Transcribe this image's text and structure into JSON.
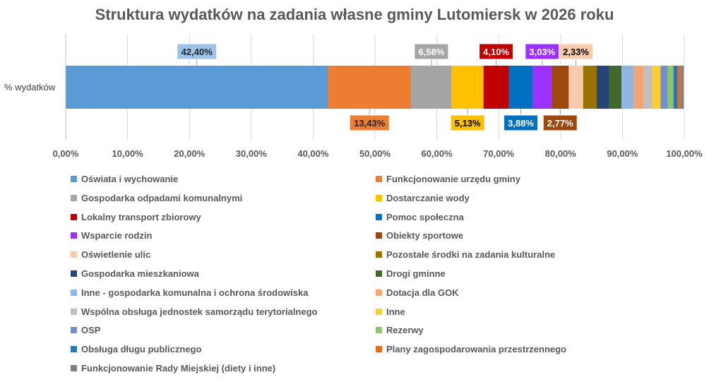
{
  "chart_data": {
    "type": "bar",
    "orientation": "horizontal-stacked-100",
    "title": "Struktura wydatków na zadania własne gminy Lutomiersk w 2026 roku",
    "category": "% wydatków",
    "xlim": [
      0,
      100
    ],
    "ticks": [
      "0,00%",
      "10,00%",
      "20,00%",
      "30,00%",
      "40,00%",
      "50,00%",
      "60,00%",
      "70,00%",
      "80,00%",
      "90,00%",
      "100,00%"
    ],
    "series": [
      {
        "name": "Oświata i wychowanie",
        "value": 42.4,
        "label": "42,40%",
        "color": "#5B9BD5",
        "label_pos": "above"
      },
      {
        "name": "Funkcjonowanie urzędu gminy",
        "value": 13.43,
        "label": "13,43%",
        "color": "#ED7D31",
        "label_pos": "below"
      },
      {
        "name": "Gospodarka odpadami komunalnymi",
        "value": 6.58,
        "label": "6,58%",
        "color": "#A5A5A5",
        "label_pos": "above"
      },
      {
        "name": "Dostarczanie wody",
        "value": 5.13,
        "label": "5,13%",
        "color": "#FFC000",
        "label_pos": "below"
      },
      {
        "name": "Lokalny transport zbiorowy",
        "value": 4.1,
        "label": "4,10%",
        "color": "#C00000",
        "label_pos": "above"
      },
      {
        "name": "Pomoc społeczna",
        "value": 3.88,
        "label": "3,88%",
        "color": "#0070C0",
        "label_pos": "below"
      },
      {
        "name": "Wsparcie rodzin",
        "value": 3.03,
        "label": "3,03%",
        "color": "#9B30FF",
        "label_pos": "above"
      },
      {
        "name": "Obiekty sportowe",
        "value": 2.77,
        "label": "2,77%",
        "color": "#9E480E",
        "label_pos": "below"
      },
      {
        "name": "Oświetlenie ulic",
        "value": 2.33,
        "label": "2,33%",
        "color": "#F8CBAD",
        "label_pos": "above"
      },
      {
        "name": "Pozostałe środki na zadania kulturalne",
        "value": 2.2,
        "label": "",
        "color": "#997300"
      },
      {
        "name": "Gospodarka mieszkaniowa",
        "value": 2.0,
        "label": "",
        "color": "#264478"
      },
      {
        "name": "Drogi gminne",
        "value": 2.0,
        "label": "",
        "color": "#43682B"
      },
      {
        "name": "Inne - gospodarka komunalna i ochrona środowiska",
        "value": 2.0,
        "label": "",
        "color": "#8FB5E3"
      },
      {
        "name": "Dotacja dla GOK",
        "value": 1.6,
        "label": "",
        "color": "#F4A373"
      },
      {
        "name": "Wspólna obsługa jednostek samorządu terytorialnego",
        "value": 1.4,
        "label": "",
        "color": "#BFBFBF"
      },
      {
        "name": "Inne",
        "value": 1.3,
        "label": "",
        "color": "#FFCD2E"
      },
      {
        "name": "OSP",
        "value": 1.2,
        "label": "",
        "color": "#6F8FCF"
      },
      {
        "name": "Rezerwy",
        "value": 0.9,
        "label": "",
        "color": "#8CC56A"
      },
      {
        "name": "Obsługa długu publicznego",
        "value": 0.7,
        "label": "",
        "color": "#2E75B6"
      },
      {
        "name": "Plany zagospodarowania przestrzennego",
        "value": 0.5,
        "label": "",
        "color": "#E36C1D"
      },
      {
        "name": "Funkcjonowanie Rady Miejskiej (diety i inne)",
        "value": 0.46,
        "label": "",
        "color": "#7F7F7F"
      }
    ]
  }
}
